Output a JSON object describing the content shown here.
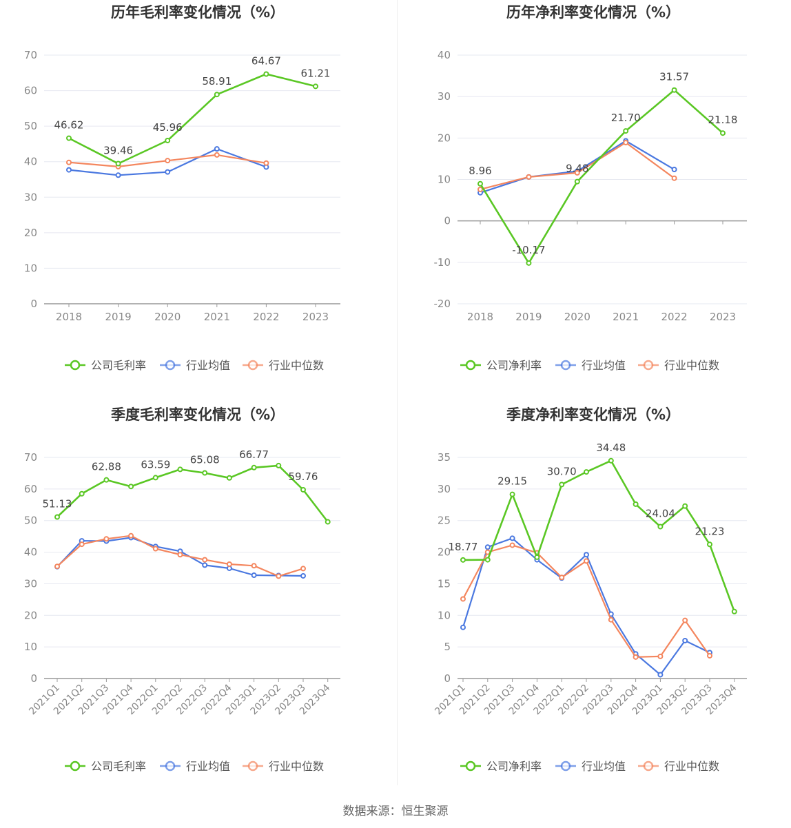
{
  "source": "数据来源：恒生聚源",
  "legend_labels": [
    "公司毛利率",
    "行业均值",
    "行业中位数"
  ],
  "colors": {
    "company": "#5ac724",
    "industry_avg": "#4a78e0",
    "industry_median": "#f4865e",
    "grid": "#e6e8f0",
    "axis": "#999999",
    "tick_text": "#888888",
    "label_text": "#444444"
  },
  "chart_data": [
    {
      "type": "line",
      "title": "历年毛利率变化情况（%）",
      "categories": [
        "2018",
        "2019",
        "2020",
        "2021",
        "2022",
        "2023"
      ],
      "ylim": [
        0,
        70
      ],
      "yticks": [
        0,
        10,
        20,
        30,
        40,
        50,
        60,
        70
      ],
      "grid": true,
      "legend_position": "bottom",
      "series": [
        {
          "name": "公司毛利率",
          "values": [
            46.62,
            39.46,
            45.96,
            58.91,
            64.67,
            61.21
          ],
          "labels": [
            "46.62",
            "39.46",
            "45.96",
            "58.91",
            "64.67",
            "61.21"
          ]
        },
        {
          "name": "行业均值",
          "values": [
            37.7,
            36.2,
            37.1,
            43.6,
            38.5,
            null
          ]
        },
        {
          "name": "行业中位数",
          "values": [
            39.8,
            38.6,
            40.3,
            41.9,
            39.6,
            null
          ]
        }
      ]
    },
    {
      "type": "line",
      "title": "历年净利率变化情况（%）",
      "categories": [
        "2018",
        "2019",
        "2020",
        "2021",
        "2022",
        "2023"
      ],
      "ylim": [
        -20,
        40
      ],
      "yticks": [
        -20,
        -10,
        0,
        10,
        20,
        30,
        40
      ],
      "grid": true,
      "legend_position": "bottom",
      "series": [
        {
          "name": "公司净利率",
          "values": [
            8.96,
            -10.17,
            9.48,
            21.7,
            31.57,
            21.18
          ],
          "labels": [
            "8.96",
            "-10.17",
            "9.48",
            "21.70",
            "31.57",
            "21.18"
          ]
        },
        {
          "name": "行业均值",
          "values": [
            6.8,
            10.6,
            12.0,
            19.3,
            12.4,
            null
          ]
        },
        {
          "name": "行业中位数",
          "values": [
            7.6,
            10.6,
            11.6,
            18.9,
            10.3,
            null
          ]
        }
      ]
    },
    {
      "type": "line",
      "title": "季度毛利率变化情况（%）",
      "categories": [
        "2021Q1",
        "2021Q2",
        "2021Q3",
        "2021Q4",
        "2022Q1",
        "2022Q2",
        "2022Q3",
        "2022Q4",
        "2023Q1",
        "2023Q2",
        "2023Q3",
        "2023Q4"
      ],
      "ylim": [
        0,
        70
      ],
      "yticks": [
        0,
        10,
        20,
        30,
        40,
        50,
        60,
        70
      ],
      "grid": true,
      "legend_position": "bottom",
      "series": [
        {
          "name": "公司毛利率",
          "values": [
            51.13,
            58.5,
            62.88,
            60.8,
            63.59,
            66.2,
            65.08,
            63.5,
            66.77,
            67.4,
            59.76,
            49.6
          ],
          "labels": [
            "51.13",
            "",
            "62.88",
            "",
            "63.59",
            "",
            "65.08",
            "",
            "66.77",
            "",
            "59.76",
            ""
          ]
        },
        {
          "name": "行业均值",
          "values": [
            35.4,
            43.6,
            43.5,
            44.6,
            41.8,
            40.3,
            35.9,
            34.9,
            32.7,
            32.6,
            32.5,
            null
          ]
        },
        {
          "name": "行业中位数",
          "values": [
            35.5,
            42.5,
            44.2,
            45.2,
            41.1,
            39.2,
            37.6,
            36.2,
            35.7,
            32.4,
            34.8,
            null
          ]
        }
      ]
    },
    {
      "type": "line",
      "title": "季度净利率变化情况（%）",
      "categories": [
        "2021Q1",
        "2021Q2",
        "2021Q3",
        "2021Q4",
        "2022Q1",
        "2022Q2",
        "2022Q3",
        "2022Q4",
        "2023Q1",
        "2023Q2",
        "2023Q3",
        "2023Q4"
      ],
      "ylim": [
        0,
        35
      ],
      "yticks": [
        0,
        5,
        10,
        15,
        20,
        25,
        30,
        35
      ],
      "grid": true,
      "legend_position": "bottom",
      "series": [
        {
          "name": "公司净利率",
          "values": [
            18.77,
            18.8,
            29.15,
            19.2,
            30.7,
            32.7,
            34.48,
            27.6,
            24.04,
            27.3,
            21.23,
            10.6
          ],
          "labels": [
            "18.77",
            "",
            "29.15",
            "",
            "30.70",
            "",
            "34.48",
            "",
            "24.04",
            "",
            "21.23",
            ""
          ]
        },
        {
          "name": "行业均值",
          "values": [
            8.1,
            20.8,
            22.2,
            18.8,
            15.9,
            19.6,
            10.2,
            3.9,
            0.6,
            6.0,
            4.1,
            null
          ]
        },
        {
          "name": "行业中位数",
          "values": [
            12.6,
            20.0,
            21.1,
            19.9,
            16.0,
            18.6,
            9.3,
            3.4,
            3.5,
            9.2,
            3.6,
            null
          ]
        }
      ]
    }
  ]
}
